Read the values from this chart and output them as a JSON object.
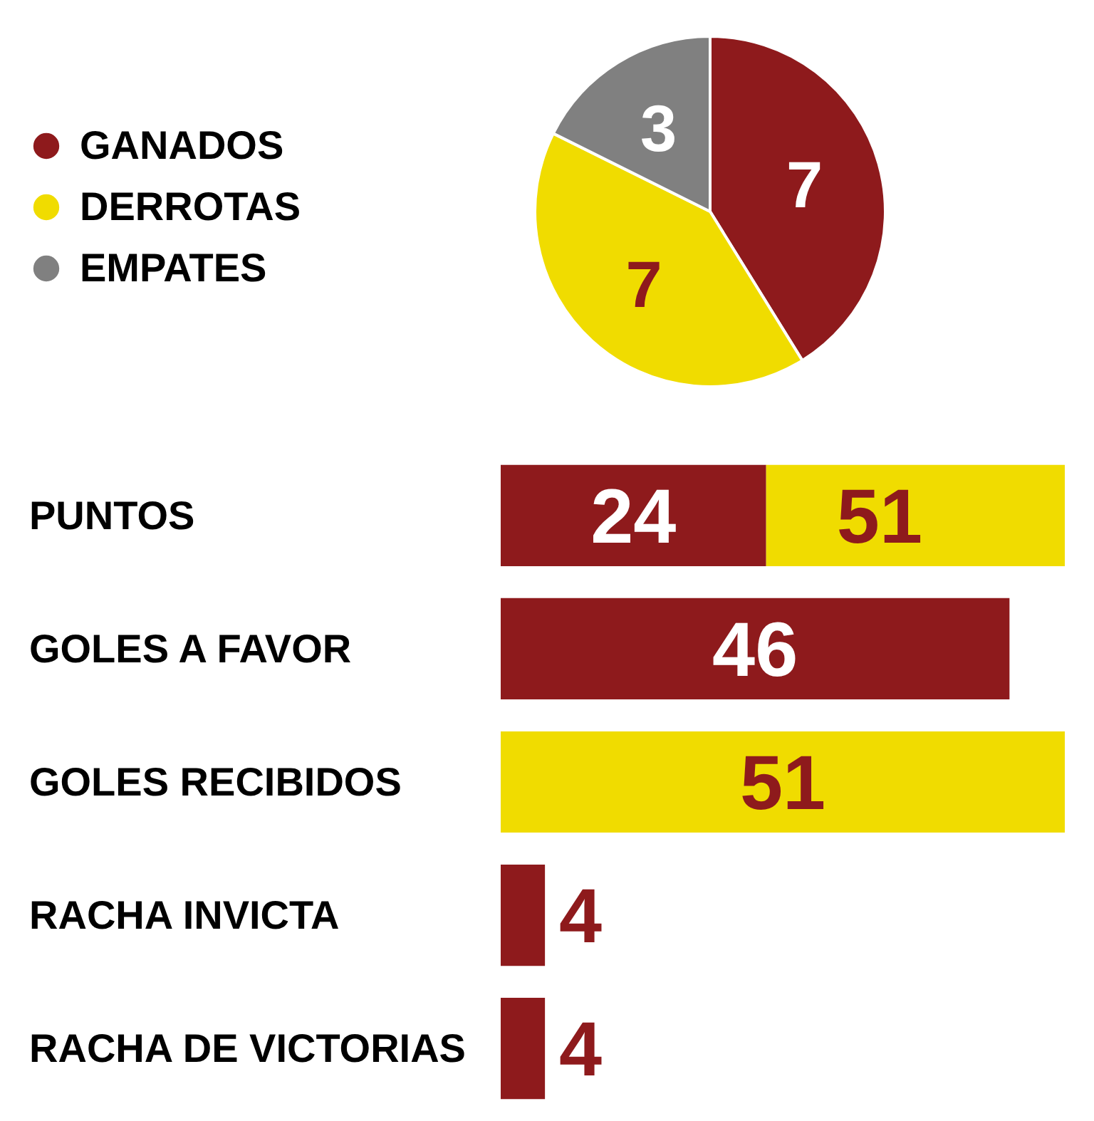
{
  "chart_data": [
    {
      "type": "pie",
      "categories": [
        "GANADOS",
        "DERROTAS",
        "EMPATES"
      ],
      "values": [
        7,
        7,
        3
      ],
      "colors": [
        "#8e1a1c",
        "#f0dc00",
        "#808080"
      ],
      "data_labels": true,
      "legend": "left"
    },
    {
      "type": "bar",
      "orientation": "horizontal",
      "stacked": true,
      "categories": [
        "PUNTOS",
        "GOLES A FAVOR",
        "GOLES RECIBIDOS",
        "RACHA INVICTA",
        "RACHA DE VICTORIAS"
      ],
      "series": [
        {
          "color": "#8e1a1c",
          "values": [
            24,
            46,
            null,
            4,
            4
          ],
          "value_labels": [
            "24",
            "46",
            null,
            "4",
            "4"
          ]
        },
        {
          "color": "#f0dc00",
          "values": [
            27,
            null,
            51,
            null,
            null
          ],
          "value_labels": [
            null,
            null,
            "51",
            null,
            null
          ]
        }
      ],
      "totals": [
        "51",
        null,
        null,
        null,
        null
      ],
      "xlim": [
        0,
        51
      ],
      "tick_labels": "y"
    }
  ]
}
